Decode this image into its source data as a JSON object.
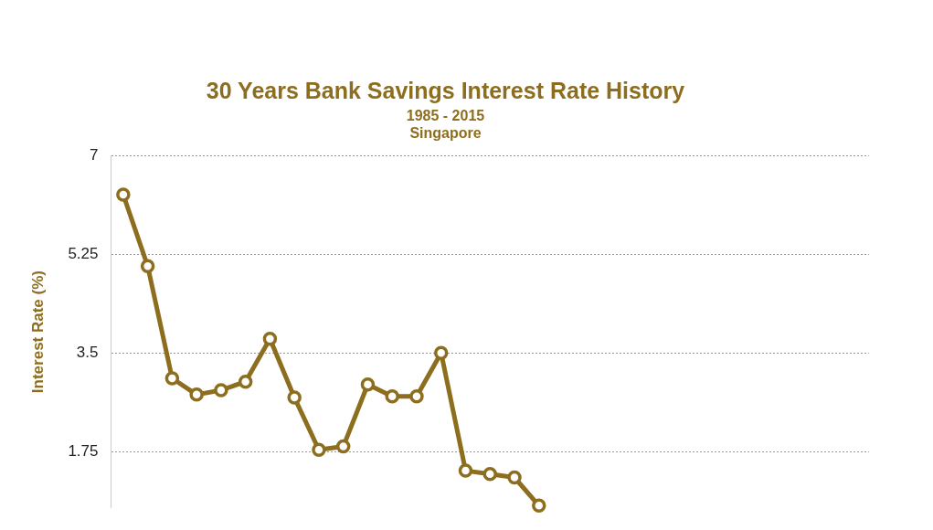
{
  "chart_data": {
    "type": "line",
    "title": "30 Years Bank Savings Interest Rate History",
    "subtitle": "1985 - 2015\nSingapore",
    "ylabel": "Interest Rate (%)",
    "categories": [
      null,
      null,
      null,
      null,
      null,
      null,
      null,
      null,
      null,
      null,
      null,
      null,
      null,
      null,
      null,
      null,
      null,
      null,
      null,
      null,
      null,
      null,
      null,
      null,
      null,
      null,
      null,
      null,
      null,
      null,
      null
    ],
    "series": [
      {
        "color": "#8d6e1f",
        "values": [
          6.31,
          5.04,
          3.05,
          2.76,
          2.84,
          2.99,
          3.75,
          2.71,
          1.78,
          1.84,
          2.94,
          2.73,
          2.73,
          3.5,
          1.41,
          1.35,
          1.29,
          0.79,
          null,
          null,
          null,
          null,
          null,
          null,
          null,
          null,
          null,
          null,
          null,
          null,
          null
        ]
      }
    ],
    "ylim": [
      0.75,
      7
    ],
    "yticks": [
      1.75,
      3.5,
      5.25,
      7
    ],
    "grid": "y",
    "legend": false,
    "marker": "circle",
    "line_style": "solid",
    "tick_labels": "y"
  }
}
